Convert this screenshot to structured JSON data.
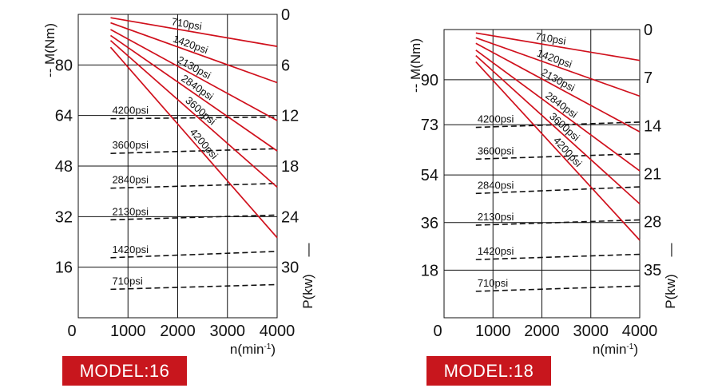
{
  "models": [
    {
      "label": "MODEL:16"
    },
    {
      "label": "MODEL:18"
    }
  ],
  "chart_data": [
    {
      "type": "line",
      "title": "",
      "xlabel": "n(min",
      "xlabel_sup": "-1",
      "xlabel_suffix": ")",
      "ylabel_left": "-- M(Nm)",
      "ylabel_right": "P(kw)",
      "ylabel_right_mark": "—",
      "x_origin_label": "0",
      "x_ticks": [
        1000,
        2000,
        3000,
        4000
      ],
      "xlim": [
        0,
        4000
      ],
      "y_left_ticks": [
        16,
        32,
        48,
        64,
        80
      ],
      "ylim_left": [
        0,
        96
      ],
      "y_right_ticks": [
        0,
        6,
        12,
        18,
        24,
        30
      ],
      "ylim_right": [
        0,
        36
      ],
      "grid": true,
      "power_series": [
        {
          "name": "710psi",
          "x": [
            650,
            4000
          ],
          "y": [
            0.4,
            3.8
          ]
        },
        {
          "name": "1420psi",
          "x": [
            650,
            4000
          ],
          "y": [
            1.0,
            8.1
          ]
        },
        {
          "name": "2130psi",
          "x": [
            650,
            4000
          ],
          "y": [
            1.8,
            12.6
          ]
        },
        {
          "name": "2840psi",
          "x": [
            650,
            4000
          ],
          "y": [
            2.5,
            16.2
          ]
        },
        {
          "name": "3600psi",
          "x": [
            650,
            4000
          ],
          "y": [
            3.1,
            20.5
          ]
        },
        {
          "name": "4200psi",
          "x": [
            650,
            4000
          ],
          "y": [
            3.9,
            26.5
          ]
        }
      ],
      "torque_series": [
        {
          "name": "4200psi",
          "x": [
            650,
            4000
          ],
          "y": [
            63,
            63.5
          ]
        },
        {
          "name": "3600psi",
          "x": [
            650,
            4000
          ],
          "y": [
            52,
            53.5
          ]
        },
        {
          "name": "2840psi",
          "x": [
            650,
            4000
          ],
          "y": [
            41,
            42.5
          ]
        },
        {
          "name": "2130psi",
          "x": [
            650,
            4000
          ],
          "y": [
            31,
            32.5
          ]
        },
        {
          "name": "1420psi",
          "x": [
            650,
            4000
          ],
          "y": [
            19,
            21
          ]
        },
        {
          "name": "710psi",
          "x": [
            650,
            4000
          ],
          "y": [
            9,
            10.5
          ]
        }
      ]
    },
    {
      "type": "line",
      "title": "",
      "xlabel": "n(min",
      "xlabel_sup": "-1",
      "xlabel_suffix": ")",
      "ylabel_left": "-- M(Nm)",
      "ylabel_right": "P(kw)",
      "ylabel_right_mark": "—",
      "x_origin_label": "0",
      "x_ticks": [
        1000,
        2000,
        3000,
        4000
      ],
      "xlim": [
        0,
        4000
      ],
      "y_left_ticks": [
        18,
        36,
        54,
        73,
        90
      ],
      "ylim_left": [
        0,
        109
      ],
      "y_right_ticks": [
        0,
        7,
        14,
        21,
        28,
        35
      ],
      "ylim_right": [
        0,
        42
      ],
      "grid": true,
      "power_series": [
        {
          "name": "710psi",
          "x": [
            650,
            4000
          ],
          "y": [
            0.5,
            4.5
          ]
        },
        {
          "name": "1420psi",
          "x": [
            650,
            4000
          ],
          "y": [
            1.2,
            9.7
          ]
        },
        {
          "name": "2130psi",
          "x": [
            650,
            4000
          ],
          "y": [
            2.0,
            14.9
          ]
        },
        {
          "name": "2840psi",
          "x": [
            650,
            4000
          ],
          "y": [
            3.0,
            20.6
          ]
        },
        {
          "name": "3600psi",
          "x": [
            650,
            4000
          ],
          "y": [
            3.8,
            25.4
          ]
        },
        {
          "name": "4200psi",
          "x": [
            650,
            4000
          ],
          "y": [
            4.7,
            30.7
          ]
        }
      ],
      "torque_series": [
        {
          "name": "4200psi",
          "x": [
            650,
            4000
          ],
          "y": [
            72,
            74
          ]
        },
        {
          "name": "3600psi",
          "x": [
            650,
            4000
          ],
          "y": [
            60,
            62
          ]
        },
        {
          "name": "2840psi",
          "x": [
            650,
            4000
          ],
          "y": [
            47,
            49.5
          ]
        },
        {
          "name": "2130psi",
          "x": [
            650,
            4000
          ],
          "y": [
            35,
            37
          ]
        },
        {
          "name": "1420psi",
          "x": [
            650,
            4000
          ],
          "y": [
            22,
            24
          ]
        },
        {
          "name": "710psi",
          "x": [
            650,
            4000
          ],
          "y": [
            10,
            12
          ]
        }
      ]
    }
  ],
  "colors": {
    "power": "#d0101c",
    "torque": "#111111",
    "grid": "#111111",
    "badge": "#c8161d"
  }
}
